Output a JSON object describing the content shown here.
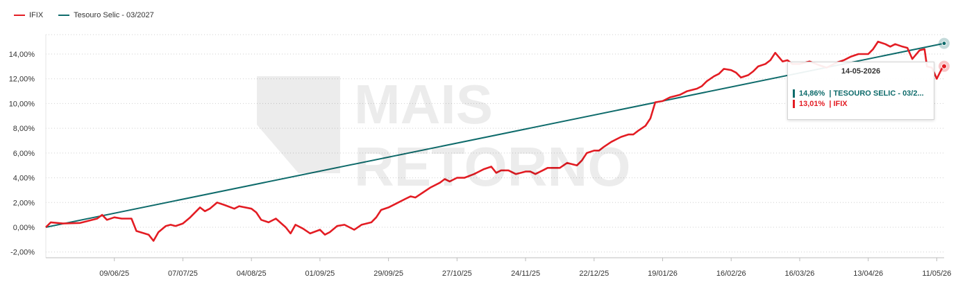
{
  "legend": [
    {
      "label": "IFIX",
      "color": "#e31c23"
    },
    {
      "label": "Tesouro Selic - 03/2027",
      "color": "#0e6b6b"
    }
  ],
  "watermark": {
    "text": [
      "MAIS",
      "RETORNO"
    ]
  },
  "tooltip": {
    "date": "14-05-2026",
    "rows": [
      {
        "value": "14,86%",
        "label": "| TESOURO SELIC - 03/2...",
        "color": "#0e6b6b"
      },
      {
        "value": "13,01%",
        "label": "| IFIX",
        "color": "#e31c23"
      }
    ]
  },
  "chart_data": {
    "type": "line",
    "title": "",
    "xlabel": "",
    "ylabel": "",
    "ylim": [
      -2,
      16
    ],
    "x_range": [
      "2025-05-12",
      "2026-05-14"
    ],
    "y_ticks": [
      -2,
      0,
      2,
      4,
      6,
      8,
      10,
      12,
      14
    ],
    "y_tick_labels": [
      "-2,00%",
      "0,00%",
      "2,00%",
      "4,00%",
      "6,00%",
      "8,00%",
      "10,00%",
      "12,00%",
      "14,00%"
    ],
    "x_ticks": [
      {
        "date": "2025-06-09",
        "label": "09/06/25"
      },
      {
        "date": "2025-07-07",
        "label": "07/07/25"
      },
      {
        "date": "2025-08-04",
        "label": "04/08/25"
      },
      {
        "date": "2025-09-01",
        "label": "01/09/25"
      },
      {
        "date": "2025-09-29",
        "label": "29/09/25"
      },
      {
        "date": "2025-10-27",
        "label": "27/10/25"
      },
      {
        "date": "2025-11-24",
        "label": "24/11/25"
      },
      {
        "date": "2025-12-22",
        "label": "22/12/25"
      },
      {
        "date": "2026-01-19",
        "label": "19/01/26"
      },
      {
        "date": "2026-02-16",
        "label": "16/02/26"
      },
      {
        "date": "2026-03-16",
        "label": "16/03/26"
      },
      {
        "date": "2026-04-13",
        "label": "13/04/26"
      },
      {
        "date": "2026-05-11",
        "label": "11/05/26"
      }
    ],
    "grid": "horizontal-dotted",
    "legend_position": "top-left",
    "series": [
      {
        "name": "IFIX",
        "color": "#e31c23",
        "points": [
          [
            "2025-05-12",
            0.0
          ],
          [
            "2025-05-14",
            0.4
          ],
          [
            "2025-05-19",
            0.3
          ],
          [
            "2025-05-26",
            0.35
          ],
          [
            "2025-06-02",
            0.7
          ],
          [
            "2025-06-04",
            1.0
          ],
          [
            "2025-06-06",
            0.6
          ],
          [
            "2025-06-09",
            0.8
          ],
          [
            "2025-06-12",
            0.7
          ],
          [
            "2025-06-16",
            0.7
          ],
          [
            "2025-06-18",
            -0.3
          ],
          [
            "2025-06-23",
            -0.6
          ],
          [
            "2025-06-25",
            -1.1
          ],
          [
            "2025-06-27",
            -0.4
          ],
          [
            "2025-06-30",
            0.1
          ],
          [
            "2025-07-02",
            0.2
          ],
          [
            "2025-07-04",
            0.1
          ],
          [
            "2025-07-07",
            0.3
          ],
          [
            "2025-07-10",
            0.8
          ],
          [
            "2025-07-14",
            1.6
          ],
          [
            "2025-07-16",
            1.3
          ],
          [
            "2025-07-18",
            1.5
          ],
          [
            "2025-07-21",
            2.0
          ],
          [
            "2025-07-24",
            1.8
          ],
          [
            "2025-07-28",
            1.5
          ],
          [
            "2025-07-30",
            1.7
          ],
          [
            "2025-08-04",
            1.5
          ],
          [
            "2025-08-06",
            1.2
          ],
          [
            "2025-08-08",
            0.6
          ],
          [
            "2025-08-11",
            0.4
          ],
          [
            "2025-08-14",
            0.7
          ],
          [
            "2025-08-18",
            0.0
          ],
          [
            "2025-08-20",
            -0.5
          ],
          [
            "2025-08-22",
            0.2
          ],
          [
            "2025-08-25",
            -0.1
          ],
          [
            "2025-08-28",
            -0.5
          ],
          [
            "2025-09-01",
            -0.2
          ],
          [
            "2025-09-03",
            -0.6
          ],
          [
            "2025-09-05",
            -0.4
          ],
          [
            "2025-09-08",
            0.1
          ],
          [
            "2025-09-11",
            0.2
          ],
          [
            "2025-09-15",
            -0.2
          ],
          [
            "2025-09-18",
            0.2
          ],
          [
            "2025-09-22",
            0.4
          ],
          [
            "2025-09-24",
            0.8
          ],
          [
            "2025-09-26",
            1.4
          ],
          [
            "2025-09-29",
            1.6
          ],
          [
            "2025-10-02",
            1.9
          ],
          [
            "2025-10-06",
            2.3
          ],
          [
            "2025-10-08",
            2.5
          ],
          [
            "2025-10-10",
            2.4
          ],
          [
            "2025-10-13",
            2.8
          ],
          [
            "2025-10-16",
            3.2
          ],
          [
            "2025-10-20",
            3.6
          ],
          [
            "2025-10-22",
            3.9
          ],
          [
            "2025-10-24",
            3.7
          ],
          [
            "2025-10-27",
            4.0
          ],
          [
            "2025-10-30",
            4.0
          ],
          [
            "2025-11-03",
            4.3
          ],
          [
            "2025-11-05",
            4.5
          ],
          [
            "2025-11-07",
            4.7
          ],
          [
            "2025-11-10",
            4.9
          ],
          [
            "2025-11-12",
            4.4
          ],
          [
            "2025-11-14",
            4.6
          ],
          [
            "2025-11-17",
            4.6
          ],
          [
            "2025-11-20",
            4.3
          ],
          [
            "2025-11-24",
            4.5
          ],
          [
            "2025-11-26",
            4.5
          ],
          [
            "2025-11-28",
            4.3
          ],
          [
            "2025-12-01",
            4.6
          ],
          [
            "2025-12-03",
            4.8
          ],
          [
            "2025-12-05",
            4.8
          ],
          [
            "2025-12-08",
            4.8
          ],
          [
            "2025-12-11",
            5.2
          ],
          [
            "2025-12-15",
            5.0
          ],
          [
            "2025-12-17",
            5.4
          ],
          [
            "2025-12-19",
            6.0
          ],
          [
            "2025-12-22",
            6.2
          ],
          [
            "2025-12-24",
            6.2
          ],
          [
            "2025-12-26",
            6.5
          ],
          [
            "2025-12-29",
            6.9
          ],
          [
            "2026-01-02",
            7.3
          ],
          [
            "2026-01-05",
            7.5
          ],
          [
            "2026-01-07",
            7.5
          ],
          [
            "2026-01-09",
            7.8
          ],
          [
            "2026-01-12",
            8.2
          ],
          [
            "2026-01-14",
            8.8
          ],
          [
            "2026-01-16",
            10.1
          ],
          [
            "2026-01-19",
            10.2
          ],
          [
            "2026-01-22",
            10.5
          ],
          [
            "2026-01-26",
            10.7
          ],
          [
            "2026-01-29",
            11.0
          ],
          [
            "2026-02-02",
            11.2
          ],
          [
            "2026-02-04",
            11.4
          ],
          [
            "2026-02-06",
            11.8
          ],
          [
            "2026-02-09",
            12.2
          ],
          [
            "2026-02-11",
            12.4
          ],
          [
            "2026-02-13",
            12.8
          ],
          [
            "2026-02-16",
            12.7
          ],
          [
            "2026-02-18",
            12.5
          ],
          [
            "2026-02-20",
            12.1
          ],
          [
            "2026-02-23",
            12.3
          ],
          [
            "2026-02-25",
            12.6
          ],
          [
            "2026-02-27",
            13.0
          ],
          [
            "2026-03-02",
            13.2
          ],
          [
            "2026-03-04",
            13.5
          ],
          [
            "2026-03-06",
            14.1
          ],
          [
            "2026-03-09",
            13.4
          ],
          [
            "2026-03-11",
            13.5
          ],
          [
            "2026-03-13",
            13.2
          ],
          [
            "2026-03-16",
            13.2
          ],
          [
            "2026-03-20",
            13.4
          ],
          [
            "2026-03-24",
            13.1
          ],
          [
            "2026-03-27",
            12.9
          ],
          [
            "2026-03-31",
            13.3
          ],
          [
            "2026-04-03",
            13.5
          ],
          [
            "2026-04-06",
            13.8
          ],
          [
            "2026-04-09",
            14.0
          ],
          [
            "2026-04-13",
            14.0
          ],
          [
            "2026-04-15",
            14.4
          ],
          [
            "2026-04-17",
            15.0
          ],
          [
            "2026-04-20",
            14.8
          ],
          [
            "2026-04-22",
            14.6
          ],
          [
            "2026-04-24",
            14.8
          ],
          [
            "2026-04-27",
            14.6
          ],
          [
            "2026-04-29",
            14.5
          ],
          [
            "2026-05-01",
            13.6
          ],
          [
            "2026-05-04",
            14.3
          ],
          [
            "2026-05-06",
            14.4
          ],
          [
            "2026-05-07",
            13.0
          ],
          [
            "2026-05-09",
            12.9
          ],
          [
            "2026-05-11",
            12.0
          ],
          [
            "2026-05-13",
            12.8
          ],
          [
            "2026-05-14",
            13.01
          ]
        ]
      },
      {
        "name": "Tesouro Selic - 03/2027",
        "color": "#0e6b6b",
        "points": [
          [
            "2025-05-12",
            0.0
          ],
          [
            "2026-05-14",
            14.86
          ]
        ]
      }
    ]
  }
}
